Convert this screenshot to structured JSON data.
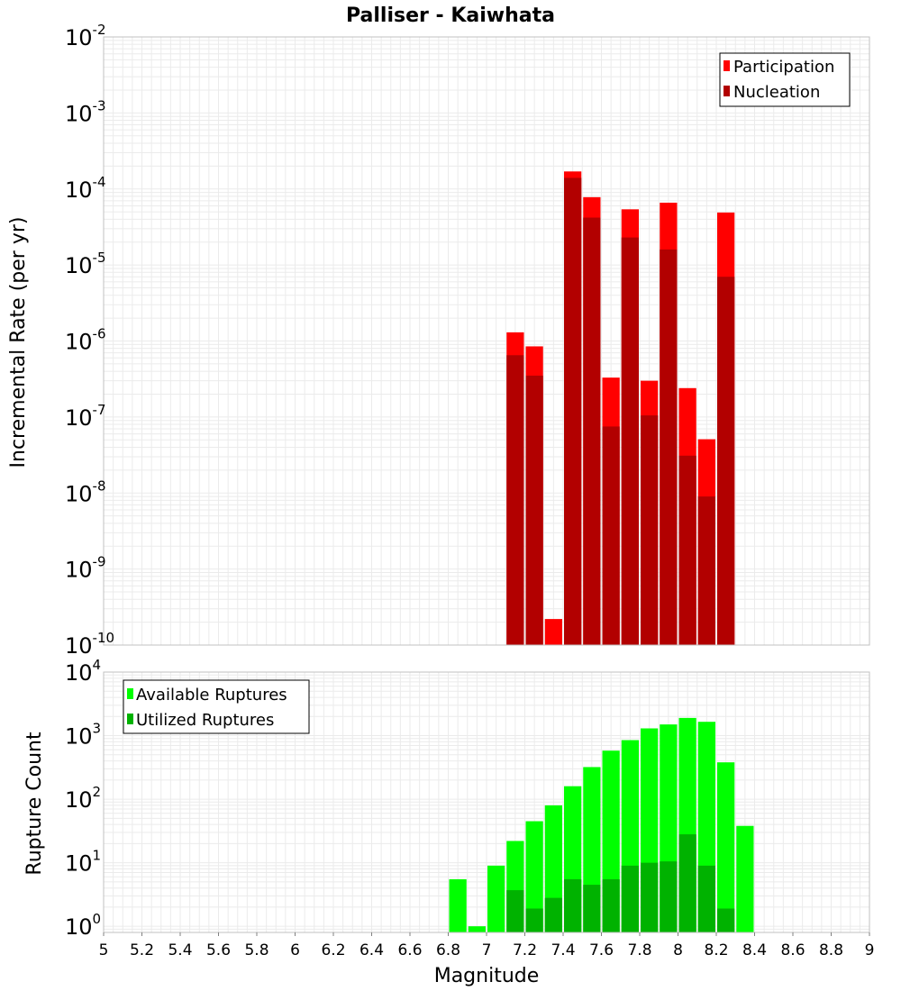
{
  "title": "Palliser - Kaiwhata",
  "colors": {
    "participation": "#ff0000",
    "nucleation": "#b20000",
    "available": "#00ff00",
    "utilized": "#00b200",
    "grid": "#ebebeb",
    "frame": "#c0c0c0"
  },
  "chart_data": [
    {
      "type": "bar",
      "scale": "log",
      "ylabel": "Incremental Rate (per yr)",
      "xlabel": "",
      "xlim": [
        5,
        9
      ],
      "ylim": [
        1e-10,
        0.01
      ],
      "y_ticks": [
        {
          "base": "10",
          "exp": "-10",
          "value": 1e-10
        },
        {
          "base": "10",
          "exp": "-9",
          "value": 1e-09
        },
        {
          "base": "10",
          "exp": "-8",
          "value": 1e-08
        },
        {
          "base": "10",
          "exp": "-7",
          "value": 1e-07
        },
        {
          "base": "10",
          "exp": "-6",
          "value": 1e-06
        },
        {
          "base": "10",
          "exp": "-5",
          "value": 1e-05
        },
        {
          "base": "10",
          "exp": "-4",
          "value": 0.0001
        },
        {
          "base": "10",
          "exp": "-3",
          "value": 0.001
        },
        {
          "base": "10",
          "exp": "-2",
          "value": 0.01
        }
      ],
      "legend_position": "top-right",
      "series": [
        {
          "name": "Participation",
          "x": [
            7.15,
            7.25,
            7.35,
            7.45,
            7.55,
            7.65,
            7.75,
            7.85,
            7.95,
            8.05,
            8.15,
            8.25
          ],
          "values": [
            1.3e-06,
            8.5e-07,
            2.2e-10,
            0.00017,
            7.8e-05,
            3.3e-07,
            5.4e-05,
            3e-07,
            6.6e-05,
            2.4e-07,
            5.1e-08,
            4.9e-05
          ]
        },
        {
          "name": "Nucleation",
          "x": [
            7.15,
            7.25,
            7.35,
            7.45,
            7.55,
            7.65,
            7.75,
            7.85,
            7.95,
            8.05,
            8.15,
            8.25
          ],
          "values": [
            6.5e-07,
            3.5e-07,
            0,
            0.00014,
            4.2e-05,
            7.5e-08,
            2.3e-05,
            1.05e-07,
            1.6e-05,
            3.1e-08,
            9e-09,
            7e-06
          ]
        }
      ]
    },
    {
      "type": "bar",
      "scale": "log",
      "ylabel": "Rupture Count",
      "xlabel": "Magnitude",
      "xlim": [
        5,
        9
      ],
      "ylim": [
        0.8,
        10000
      ],
      "x_ticks": [
        "5",
        "5.2",
        "5.4",
        "5.6",
        "5.8",
        "6",
        "6.2",
        "6.4",
        "6.6",
        "6.8",
        "7",
        "7.2",
        "7.4",
        "7.6",
        "7.8",
        "8",
        "8.2",
        "8.4",
        "8.6",
        "8.8",
        "9"
      ],
      "y_ticks": [
        {
          "base": "10",
          "exp": "0",
          "value": 1
        },
        {
          "base": "10",
          "exp": "1",
          "value": 10
        },
        {
          "base": "10",
          "exp": "2",
          "value": 100
        },
        {
          "base": "10",
          "exp": "3",
          "value": 1000
        },
        {
          "base": "10",
          "exp": "4",
          "value": 10000
        }
      ],
      "legend_position": "top-left",
      "series": [
        {
          "name": "Available Ruptures",
          "x": [
            6.85,
            6.95,
            7.05,
            7.15,
            7.25,
            7.35,
            7.45,
            7.55,
            7.65,
            7.75,
            7.85,
            7.95,
            8.05,
            8.15,
            8.25,
            8.35
          ],
          "values": [
            5.5,
            1.0,
            9,
            22,
            45,
            80,
            160,
            320,
            580,
            850,
            1300,
            1500,
            1900,
            1650,
            380,
            38
          ]
        },
        {
          "name": "Utilized Ruptures",
          "x": [
            6.85,
            6.95,
            7.05,
            7.15,
            7.25,
            7.35,
            7.45,
            7.55,
            7.65,
            7.75,
            7.85,
            7.95,
            8.05,
            8.15,
            8.25,
            8.35
          ],
          "values": [
            0,
            0,
            0,
            3.7,
            1.9,
            2.8,
            5.5,
            4.5,
            5.5,
            9,
            10,
            10.5,
            28,
            9,
            1.9,
            0
          ]
        }
      ]
    }
  ]
}
